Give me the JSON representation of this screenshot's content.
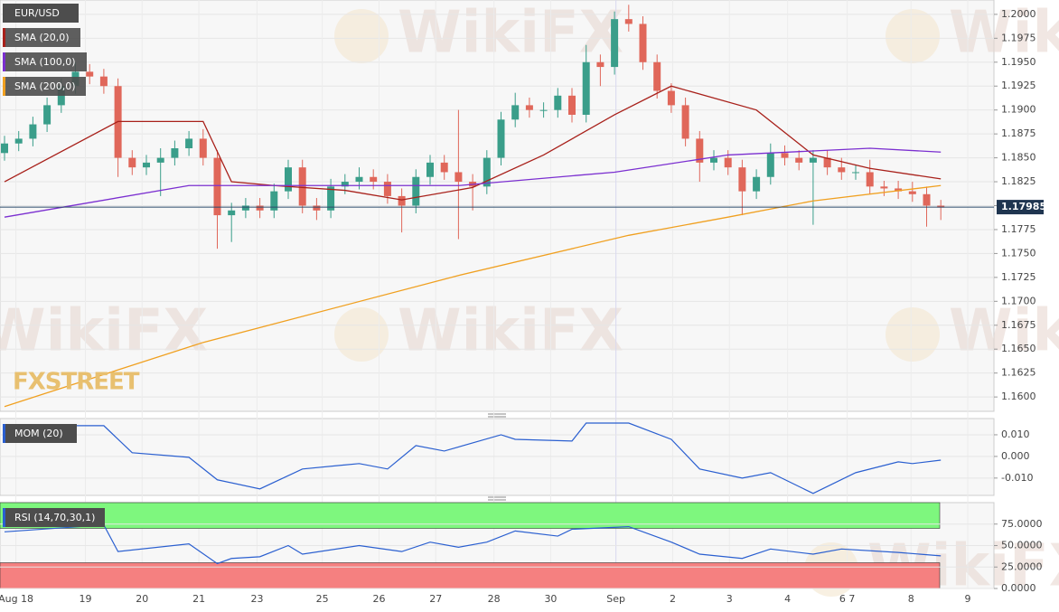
{
  "chart_data": [
    {
      "type": "candlestick",
      "title": "EUR/USD",
      "watermark": "WikiFX",
      "logo": "FXSTREET",
      "up_color": "#3a9e8a",
      "down_color": "#e0675a",
      "open": [
        1.1855,
        1.1865,
        1.187,
        1.1885,
        1.1905,
        1.1925,
        1.194,
        1.1935,
        1.1925,
        1.185,
        1.184,
        1.1845,
        1.185,
        1.186,
        1.187,
        1.185,
        1.179,
        1.1795,
        1.18,
        1.1795,
        1.1815,
        1.184,
        1.18,
        1.1795,
        1.182,
        1.1825,
        1.183,
        1.1825,
        1.181,
        1.18,
        1.183,
        1.1845,
        1.1835,
        1.1825,
        1.182,
        1.185,
        1.189,
        1.1905,
        1.19,
        1.19,
        1.1915,
        1.1895,
        1.195,
        1.1945,
        1.1995,
        1.199,
        1.195,
        1.192,
        1.1905,
        1.187,
        1.1845,
        1.185,
        1.184,
        1.1815,
        1.183,
        1.1855,
        1.185,
        1.1845,
        1.185,
        1.184,
        1.1835,
        1.1835,
        1.182,
        1.1818,
        1.1815,
        1.1812,
        1.18
      ],
      "close": [
        1.1865,
        1.187,
        1.1885,
        1.1905,
        1.1925,
        1.194,
        1.1935,
        1.1925,
        1.185,
        1.184,
        1.1845,
        1.185,
        1.186,
        1.187,
        1.185,
        1.179,
        1.1795,
        1.18,
        1.1795,
        1.1815,
        1.184,
        1.18,
        1.1795,
        1.182,
        1.1825,
        1.183,
        1.1825,
        1.181,
        1.18,
        1.183,
        1.1845,
        1.1835,
        1.1825,
        1.182,
        1.185,
        1.189,
        1.1905,
        1.19,
        1.19,
        1.1915,
        1.1895,
        1.195,
        1.1945,
        1.1995,
        1.199,
        1.195,
        1.192,
        1.1905,
        1.187,
        1.1845,
        1.185,
        1.184,
        1.1815,
        1.183,
        1.1855,
        1.185,
        1.1845,
        1.185,
        1.184,
        1.1835,
        1.1835,
        1.182,
        1.1818,
        1.1815,
        1.1812,
        1.18,
        1.1798
      ],
      "high": [
        1.1873,
        1.1878,
        1.1893,
        1.1913,
        1.1933,
        1.195,
        1.1948,
        1.1943,
        1.1933,
        1.1858,
        1.1853,
        1.186,
        1.1868,
        1.1878,
        1.188,
        1.1858,
        1.1803,
        1.1808,
        1.1808,
        1.1823,
        1.1848,
        1.1848,
        1.1808,
        1.1828,
        1.1833,
        1.184,
        1.1838,
        1.1833,
        1.1818,
        1.1838,
        1.1853,
        1.1853,
        1.19,
        1.1833,
        1.1858,
        1.1898,
        1.1918,
        1.1913,
        1.1908,
        1.1923,
        1.1923,
        1.1968,
        1.1958,
        1.2003,
        1.201,
        1.1998,
        1.1958,
        1.1928,
        1.1913,
        1.1878,
        1.1858,
        1.1858,
        1.1848,
        1.1838,
        1.1865,
        1.1863,
        1.1858,
        1.1858,
        1.1858,
        1.185,
        1.1843,
        1.1848,
        1.1826,
        1.1826,
        1.1825,
        1.182,
        1.1806
      ],
      "low": [
        1.1847,
        1.1857,
        1.1862,
        1.1877,
        1.1897,
        1.1917,
        1.1927,
        1.1917,
        1.183,
        1.1832,
        1.1832,
        1.181,
        1.1842,
        1.1852,
        1.1842,
        1.1755,
        1.1762,
        1.1787,
        1.1787,
        1.1787,
        1.1807,
        1.1792,
        1.1785,
        1.1787,
        1.1812,
        1.1817,
        1.1817,
        1.1802,
        1.1772,
        1.1792,
        1.1822,
        1.1827,
        1.1765,
        1.1795,
        1.1812,
        1.1842,
        1.1882,
        1.1892,
        1.1892,
        1.1892,
        1.1887,
        1.1887,
        1.1925,
        1.1937,
        1.1982,
        1.1942,
        1.1912,
        1.1897,
        1.1862,
        1.1825,
        1.1837,
        1.1832,
        1.179,
        1.1807,
        1.1822,
        1.1842,
        1.1837,
        1.178,
        1.1832,
        1.1827,
        1.1827,
        1.1812,
        1.181,
        1.1807,
        1.1804,
        1.1778,
        1.1785
      ],
      "series": [
        {
          "name": "SMA (20,0)",
          "color": "#a8201a",
          "x": [
            0,
            8,
            14,
            16,
            19,
            24,
            28,
            33,
            38,
            43,
            47,
            53,
            57,
            61,
            66
          ],
          "values": [
            1.1825,
            1.1888,
            1.1888,
            1.1825,
            1.1821,
            1.1816,
            1.1806,
            1.1819,
            1.1853,
            1.1895,
            1.1925,
            1.19,
            1.1853,
            1.1839,
            1.1828
          ]
        },
        {
          "name": "SMA (100,0)",
          "color": "#7b2fd0",
          "x": [
            0,
            13,
            19,
            32,
            43,
            51,
            61,
            66
          ],
          "values": [
            1.1788,
            1.1821,
            1.1821,
            1.1821,
            1.1835,
            1.1853,
            1.186,
            1.1856
          ]
        },
        {
          "name": "SMA (200,0)",
          "color": "#f0a020",
          "x": [
            0,
            14,
            32,
            44,
            51,
            57,
            66
          ],
          "values": [
            1.159,
            1.1657,
            1.1727,
            1.1769,
            1.1788,
            1.1805,
            1.1821
          ]
        }
      ],
      "last_price": 1.17985,
      "last_price_label": "1.17985",
      "ylim": [
        1.1585,
        1.2015
      ],
      "yticks": [
        {
          "value": 1.2,
          "label": "1.2000"
        },
        {
          "value": 1.1975,
          "label": "1.1975"
        },
        {
          "value": 1.195,
          "label": "1.1950"
        },
        {
          "value": 1.1925,
          "label": "1.1925"
        },
        {
          "value": 1.19,
          "label": "1.1900"
        },
        {
          "value": 1.1875,
          "label": "1.1875"
        },
        {
          "value": 1.185,
          "label": "1.1850"
        },
        {
          "value": 1.1825,
          "label": "1.1825"
        },
        {
          "value": 1.18,
          "label": "1.1800"
        },
        {
          "value": 1.1775,
          "label": "1.1775"
        },
        {
          "value": 1.175,
          "label": "1.1750"
        },
        {
          "value": 1.1725,
          "label": "1.1725"
        },
        {
          "value": 1.17,
          "label": "1.1700"
        },
        {
          "value": 1.1675,
          "label": "1.1675"
        },
        {
          "value": 1.165,
          "label": "1.1650"
        },
        {
          "value": 1.1625,
          "label": "1.1625"
        },
        {
          "value": 1.16,
          "label": "1.1600"
        }
      ],
      "xticks": [
        {
          "value": 0.8,
          "label": "Aug 18"
        },
        {
          "value": 5.7,
          "label": "19"
        },
        {
          "value": 9.7,
          "label": "20"
        },
        {
          "value": 13.7,
          "label": "21"
        },
        {
          "value": 17.8,
          "label": "23"
        },
        {
          "value": 22.4,
          "label": "25"
        },
        {
          "value": 26.4,
          "label": "26"
        },
        {
          "value": 30.4,
          "label": "27"
        },
        {
          "value": 34.5,
          "label": "28"
        },
        {
          "value": 38.5,
          "label": "30"
        },
        {
          "value": 43.1,
          "label": "Sep"
        },
        {
          "value": 47.1,
          "label": "2"
        },
        {
          "value": 51.1,
          "label": "3"
        },
        {
          "value": 55.2,
          "label": "4"
        },
        {
          "value": 59.4,
          "label": "6 7"
        },
        {
          "value": 63.9,
          "label": "8"
        },
        {
          "value": 67.9,
          "label": "9"
        }
      ],
      "grid": true
    },
    {
      "type": "line",
      "title": "MOM (20)",
      "color": "#2a5fd0",
      "x": [
        0,
        7,
        9,
        13,
        15,
        18,
        21,
        25,
        27,
        29,
        31,
        35,
        36,
        40,
        41,
        44,
        47,
        49,
        52,
        54,
        57,
        60,
        63,
        64,
        66
      ],
      "values": [
        0.0142,
        0.0142,
        0.0017,
        -0.0004,
        -0.0108,
        -0.015,
        -0.0058,
        -0.0033,
        -0.0058,
        0.005,
        0.0025,
        0.01,
        0.0079,
        0.0071,
        0.0154,
        0.0154,
        0.0079,
        -0.0058,
        -0.01,
        -0.0075,
        -0.0171,
        -0.0075,
        -0.0025,
        -0.0033,
        -0.0017
      ],
      "ylim": [
        -0.018,
        0.0175
      ],
      "yticks": [
        {
          "value": 0.01,
          "label": "0.010"
        },
        {
          "value": 0,
          "label": "0.000"
        },
        {
          "value": -0.01,
          "label": "-0.010"
        }
      ]
    },
    {
      "type": "line",
      "title": "RSI (14,70,30,1)",
      "color": "#2a5fd0",
      "overbought": 70,
      "oversold": 30,
      "overbought_color": "#7ef77e",
      "oversold_color": "#f58080",
      "x": [
        0,
        7,
        8,
        13,
        15,
        16,
        18,
        20,
        21,
        25,
        28,
        30,
        32,
        34,
        36,
        39,
        40,
        44,
        47,
        49,
        52,
        54,
        57,
        59,
        63,
        66
      ],
      "values": [
        66,
        74,
        43,
        52,
        29,
        35,
        37,
        50,
        40,
        50,
        43,
        54,
        48,
        54,
        67,
        61,
        69,
        72,
        54,
        40,
        35,
        46,
        40,
        46,
        42,
        38
      ],
      "ylim": [
        0,
        100
      ],
      "yticks": [
        {
          "value": 75,
          "label": "75.0000"
        },
        {
          "value": 50,
          "label": "50.0000"
        },
        {
          "value": 25,
          "label": "25.0000"
        },
        {
          "value": 0,
          "label": "0.0000"
        }
      ]
    }
  ]
}
